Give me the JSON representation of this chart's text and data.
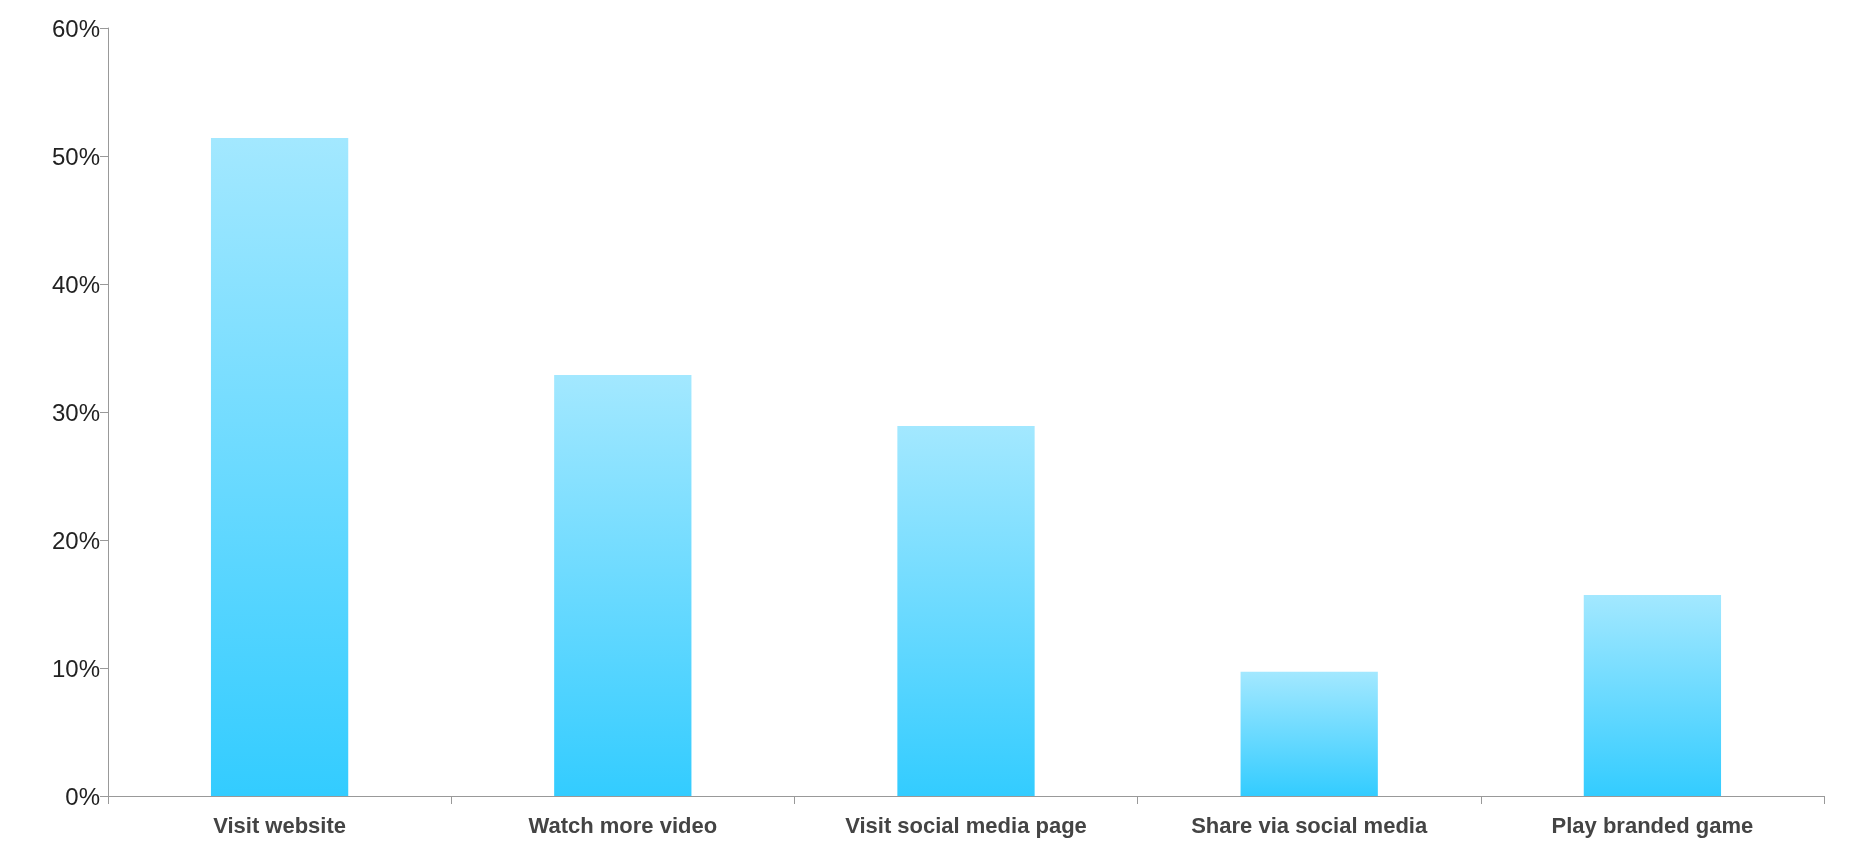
{
  "chart_data": {
    "type": "bar",
    "categories": [
      "Visit website",
      "Watch more video",
      "Visit social media page",
      "Share via social media",
      "Play branded game"
    ],
    "values": [
      51.4,
      32.9,
      28.9,
      9.7,
      15.7
    ],
    "color": "#33ccff",
    "ylim": [
      0,
      60
    ],
    "yticks": [
      {
        "value": 0,
        "label": "0%"
      },
      {
        "value": 10,
        "label": "10%"
      },
      {
        "value": 20,
        "label": "20%"
      },
      {
        "value": 30,
        "label": "30%"
      },
      {
        "value": 40,
        "label": "40%"
      },
      {
        "value": 50,
        "label": "50%"
      },
      {
        "value": 60,
        "label": "60%"
      }
    ],
    "grid": false
  }
}
